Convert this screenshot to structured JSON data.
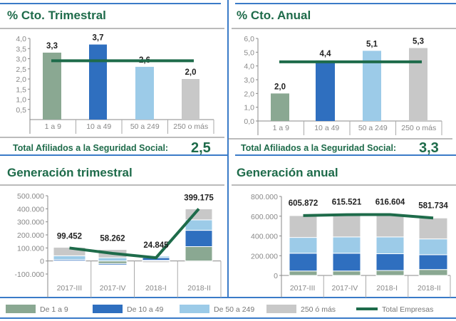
{
  "colors": {
    "g1": "#8aa892",
    "g2": "#2f6fbf",
    "g3": "#9ccbe8",
    "g4": "#c8c8c8",
    "total": "#1e6b4a",
    "rule": "#3a7bc8"
  },
  "legend": [
    "De 1 a 9",
    "De 10 a 49",
    "De 50 a 249",
    "250 ó más",
    "Total Empresas"
  ],
  "chart_data": [
    {
      "type": "bar",
      "title": "% Cto. Trimestral",
      "categories": [
        "1 a 9",
        "10 a 49",
        "50 a 249",
        "250 o más"
      ],
      "values": [
        3.3,
        3.7,
        2.6,
        2.0
      ],
      "labels": [
        "3,3",
        "3,7",
        "2,6",
        "2,0"
      ],
      "line_value": 2.9,
      "ylim": [
        0,
        4
      ],
      "yticks": [
        "0,5",
        "1,0",
        "1,5",
        "2,0",
        "2,5",
        "3,0",
        "3,5",
        "4,0"
      ],
      "total_label": "Total Afiliados a la Seguridad Social:",
      "total_value": "2,5"
    },
    {
      "type": "bar",
      "title": "% Cto. Anual",
      "categories": [
        "1 a 9",
        "10 a 49",
        "50 a 249",
        "250 o más"
      ],
      "values": [
        2.0,
        4.4,
        5.1,
        5.3
      ],
      "labels": [
        "2,0",
        "4,4",
        "5,1",
        "5,3"
      ],
      "line_value": 4.3,
      "ylim": [
        0,
        6
      ],
      "yticks": [
        "0,0",
        "1,0",
        "2,0",
        "3,0",
        "4,0",
        "5,0",
        "6,0"
      ],
      "total_label": "Total Afiliados a la Seguridad Social:",
      "total_value": "3,3"
    },
    {
      "type": "bar",
      "stacked": true,
      "title": "Generación trimestral",
      "categories": [
        "2017-III",
        "2017-IV",
        "2018-I",
        "2018-II"
      ],
      "ylim": [
        -100000,
        500000
      ],
      "yticks": [
        "-100.000",
        "0",
        "100.000",
        "200.000",
        "300.000",
        "400.000",
        "500.000"
      ],
      "series": [
        {
          "name": "De 1 a 9",
          "values": [
            -5000,
            -20000,
            5000,
            110000
          ]
        },
        {
          "name": "De 10 a 49",
          "values": [
            10000,
            -10000,
            20000,
            125000
          ]
        },
        {
          "name": "De 50 a 249",
          "values": [
            30000,
            25000,
            12000,
            80000
          ]
        },
        {
          "name": "250 ó más",
          "values": [
            65000,
            63000,
            -12000,
            84000
          ]
        }
      ],
      "total": {
        "name": "Total Empresas",
        "values": [
          99452,
          58262,
          24845,
          399175
        ],
        "labels": [
          "99.452",
          "58.262",
          "24.845",
          "399.175"
        ]
      }
    },
    {
      "type": "bar",
      "stacked": true,
      "title": "Generación anual",
      "categories": [
        "2017-III",
        "2017-IV",
        "2018-I",
        "2018-II"
      ],
      "ylim": [
        0,
        800000
      ],
      "yticks": [
        "0",
        "200.000",
        "400.000",
        "600.000",
        "800.000"
      ],
      "series": [
        {
          "name": "De 1 a 9",
          "values": [
            45000,
            45000,
            50000,
            60000
          ]
        },
        {
          "name": "De 10 a 49",
          "values": [
            180000,
            180000,
            170000,
            150000
          ]
        },
        {
          "name": "De 50 a 249",
          "values": [
            160000,
            165000,
            170000,
            160000
          ]
        },
        {
          "name": "250 ó más",
          "values": [
            221000,
            225000,
            227000,
            212000
          ]
        }
      ],
      "total": {
        "name": "Total Empresas",
        "values": [
          605872,
          615521,
          616604,
          581734
        ],
        "labels": [
          "605.872",
          "615.521",
          "616.604",
          "581.734"
        ]
      }
    }
  ]
}
